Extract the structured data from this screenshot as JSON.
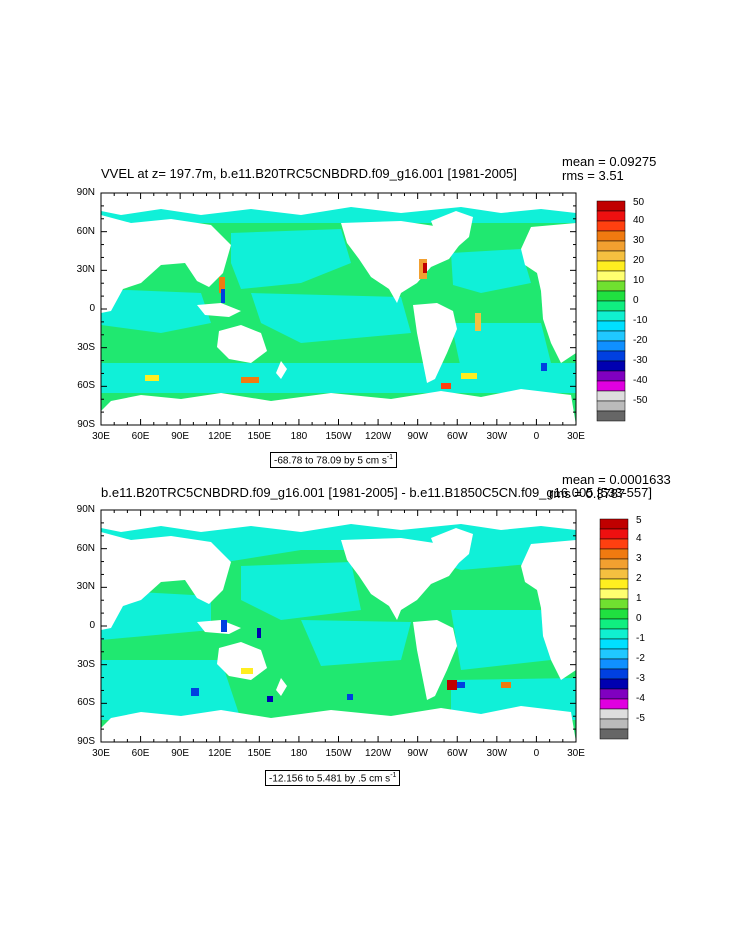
{
  "panels": [
    {
      "title": "VVEL at z= 197.7m, b.e11.B20TRC5CNBDRD.f09_g16.001 [1981-2005]",
      "mean": "mean = 0.09275",
      "rms": "rms = 3.51",
      "range": {
        "text": "-68.78 to 78.09 by 5 cm s",
        "sup": "-1"
      },
      "colorbar": {
        "labels": [
          "50",
          "40",
          "30",
          "20",
          "10",
          "0",
          "-10",
          "-20",
          "-30",
          "-40",
          "-50"
        ],
        "colors": [
          "#c00000",
          "#ee1010",
          "#ff4010",
          "#f07a10",
          "#f2a030",
          "#f5c040",
          "#ffee20",
          "#ffff70",
          "#70e030",
          "#20e040",
          "#10ee80",
          "#10f0d0",
          "#00e0ff",
          "#20c8ff",
          "#1090ff",
          "#0040e0",
          "#0000b0",
          "#8000c0",
          "#e000e0",
          "#dddddd",
          "#bbbbbb",
          "#666666"
        ]
      }
    },
    {
      "title": "b.e11.B20TRC5CNBDRD.f09_g16.001 [1981-2005] - b.e11.B1850C5CN.f09_g16.005 [533-557]",
      "mean": "mean = 0.0001633",
      "rms": "rms = 0.3787",
      "range": {
        "text": "-12.156 to 5.481 by .5 cm s",
        "sup": "-1"
      },
      "colorbar": {
        "labels": [
          "5",
          "4",
          "3",
          "2",
          "1",
          "0",
          "-1",
          "-2",
          "-3",
          "-4",
          "-5"
        ],
        "colors": [
          "#c00000",
          "#ee1010",
          "#ff4010",
          "#f07a10",
          "#f2a030",
          "#f5c040",
          "#ffee20",
          "#ffff70",
          "#70e030",
          "#20e040",
          "#10ee80",
          "#10f0d0",
          "#00e0ff",
          "#20c8ff",
          "#1090ff",
          "#0040e0",
          "#0000b0",
          "#8000c0",
          "#e000e0",
          "#dddddd",
          "#bbbbbb",
          "#666666"
        ]
      }
    }
  ],
  "lat_labels": [
    "90N",
    "60N",
    "30N",
    "0",
    "30S",
    "60S",
    "90S"
  ],
  "lon_labels": [
    "30E",
    "60E",
    "90E",
    "120E",
    "150E",
    "180",
    "150W",
    "120W",
    "90W",
    "60W",
    "30W",
    "0",
    "30E"
  ],
  "colors": {
    "ocean_main": "#20e870",
    "ocean_alt": "#10f0d8",
    "land": "#ffffff"
  }
}
